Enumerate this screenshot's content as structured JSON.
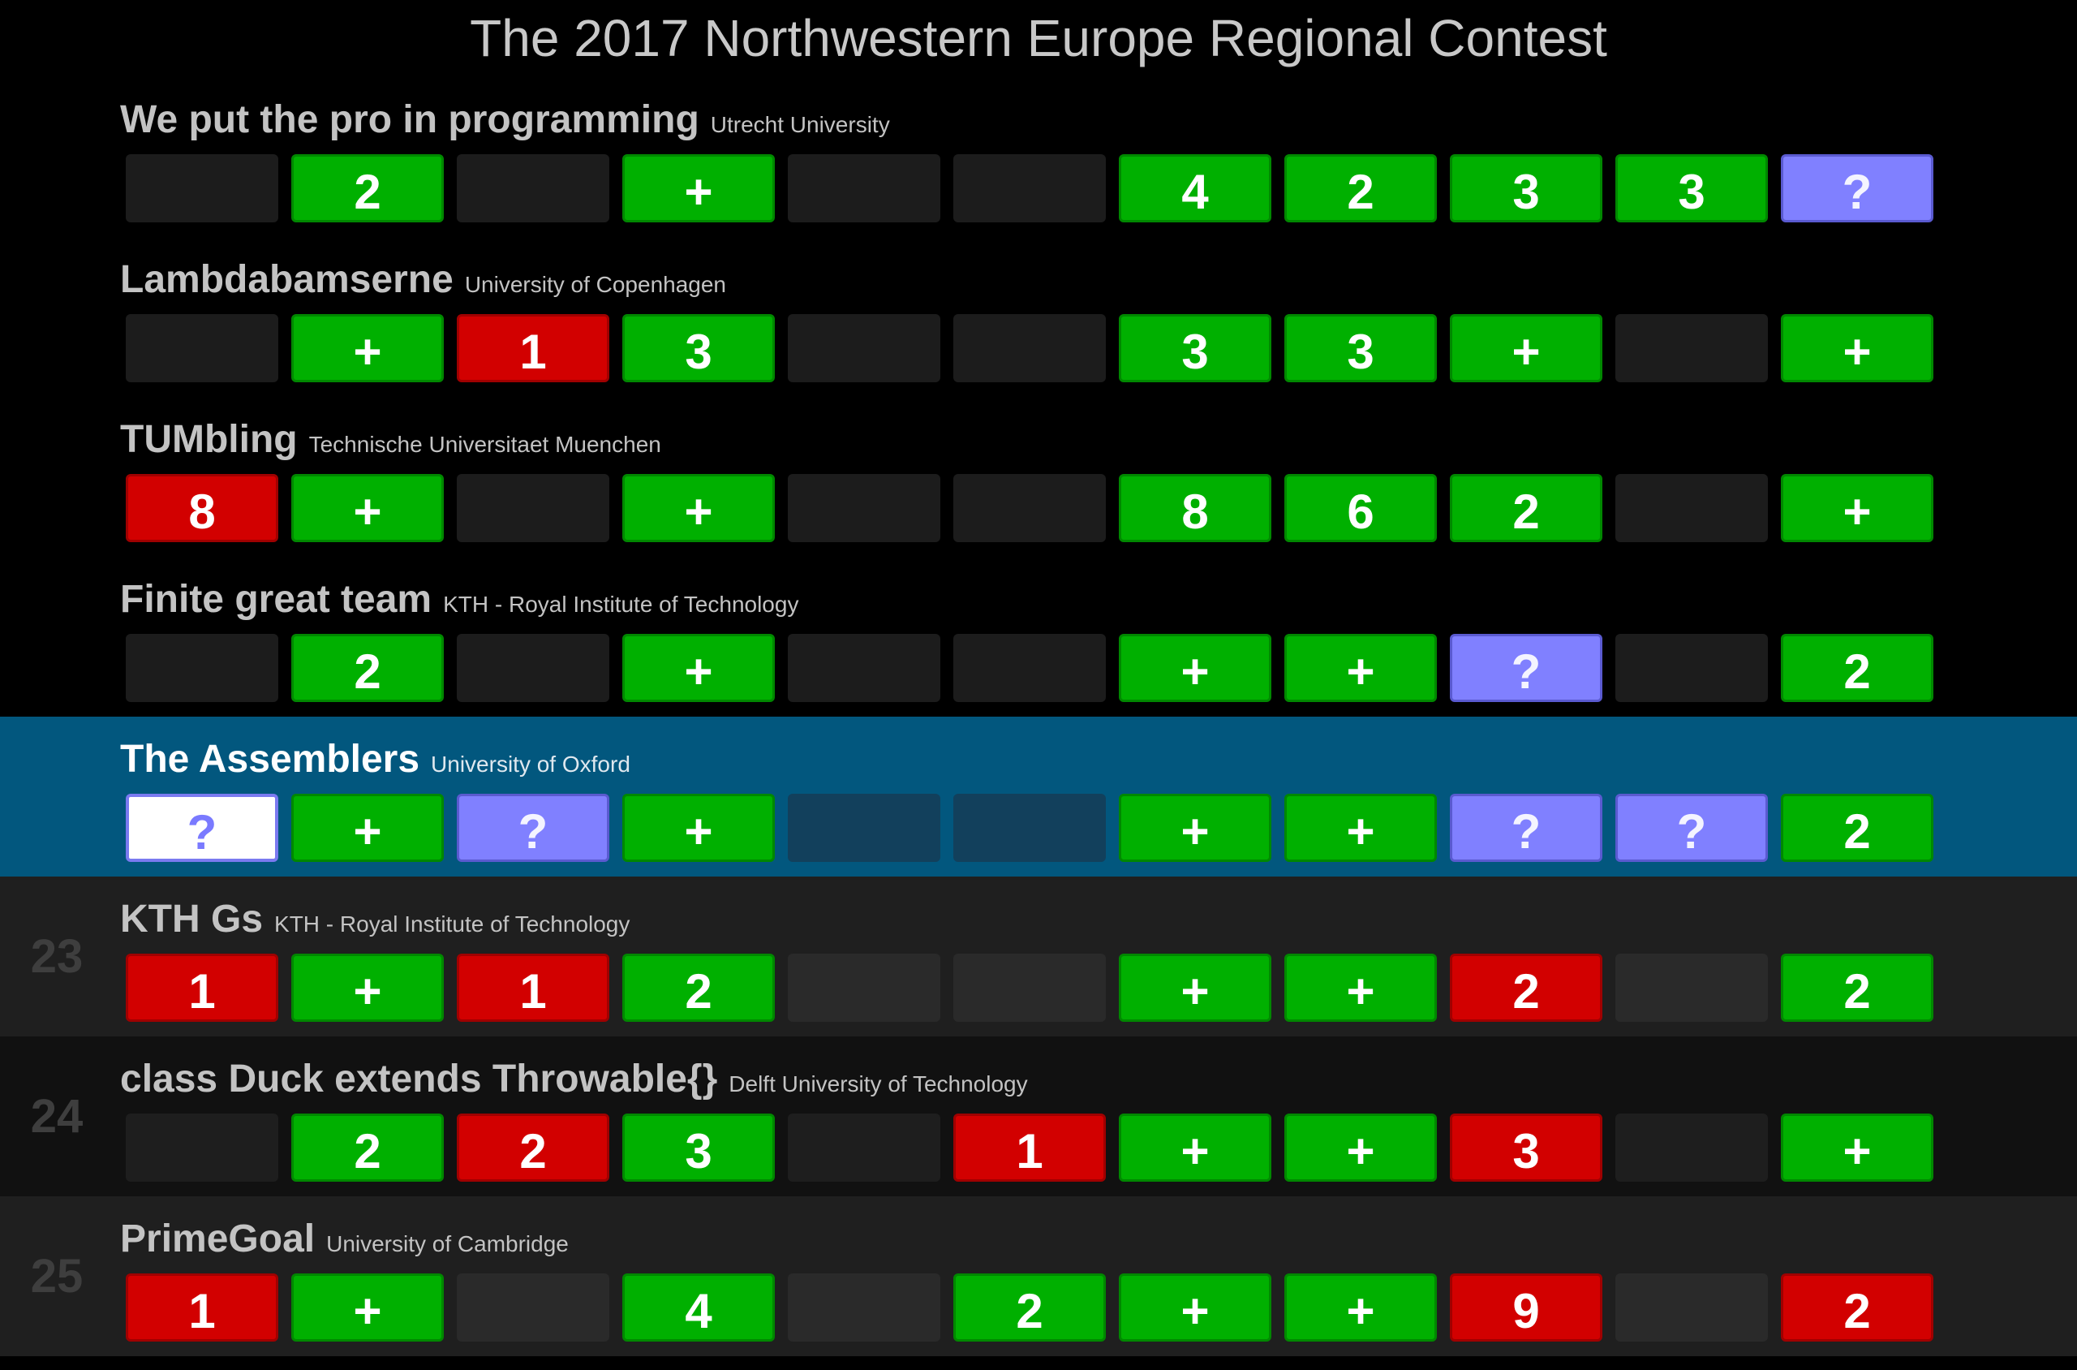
{
  "title": "The 2017 Northwestern Europe Regional Contest",
  "colors": {
    "solved": "#00b000",
    "failed": "#d20000",
    "pending": "#8080ff",
    "highlight_row": "#02577e"
  },
  "rows": [
    {
      "rank": "",
      "team": "We put the pro in programming",
      "affiliation": "Utrecht University",
      "cells": [
        {
          "status": "empty",
          "text": ""
        },
        {
          "status": "solved",
          "text": "2"
        },
        {
          "status": "empty",
          "text": ""
        },
        {
          "status": "solved",
          "text": "+"
        },
        {
          "status": "empty",
          "text": ""
        },
        {
          "status": "empty",
          "text": ""
        },
        {
          "status": "solved",
          "text": "4"
        },
        {
          "status": "solved",
          "text": "2"
        },
        {
          "status": "solved",
          "text": "3"
        },
        {
          "status": "solved",
          "text": "3"
        },
        {
          "status": "pending",
          "text": "?"
        }
      ]
    },
    {
      "rank": "",
      "team": "Lambdabamserne",
      "affiliation": "University of Copenhagen",
      "cells": [
        {
          "status": "empty",
          "text": ""
        },
        {
          "status": "solved",
          "text": "+"
        },
        {
          "status": "failed",
          "text": "1"
        },
        {
          "status": "solved",
          "text": "3"
        },
        {
          "status": "empty",
          "text": ""
        },
        {
          "status": "empty",
          "text": ""
        },
        {
          "status": "solved",
          "text": "3"
        },
        {
          "status": "solved",
          "text": "3"
        },
        {
          "status": "solved",
          "text": "+"
        },
        {
          "status": "empty",
          "text": ""
        },
        {
          "status": "solved",
          "text": "+"
        }
      ]
    },
    {
      "rank": "",
      "team": "TUMbling",
      "affiliation": "Technische Universitaet Muenchen",
      "cells": [
        {
          "status": "failed",
          "text": "8"
        },
        {
          "status": "solved",
          "text": "+"
        },
        {
          "status": "empty",
          "text": ""
        },
        {
          "status": "solved",
          "text": "+"
        },
        {
          "status": "empty",
          "text": ""
        },
        {
          "status": "empty",
          "text": ""
        },
        {
          "status": "solved",
          "text": "8"
        },
        {
          "status": "solved",
          "text": "6"
        },
        {
          "status": "solved",
          "text": "2"
        },
        {
          "status": "empty",
          "text": ""
        },
        {
          "status": "solved",
          "text": "+"
        }
      ]
    },
    {
      "rank": "",
      "team": "Finite great team",
      "affiliation": "KTH - Royal Institute of Technology",
      "cells": [
        {
          "status": "empty",
          "text": ""
        },
        {
          "status": "solved",
          "text": "2"
        },
        {
          "status": "empty",
          "text": ""
        },
        {
          "status": "solved",
          "text": "+"
        },
        {
          "status": "empty",
          "text": ""
        },
        {
          "status": "empty",
          "text": ""
        },
        {
          "status": "solved",
          "text": "+"
        },
        {
          "status": "solved",
          "text": "+"
        },
        {
          "status": "pending",
          "text": "?"
        },
        {
          "status": "empty",
          "text": ""
        },
        {
          "status": "solved",
          "text": "2"
        }
      ]
    },
    {
      "rank": "",
      "team": "The Assemblers",
      "affiliation": "University of Oxford",
      "current": true,
      "cells": [
        {
          "status": "active",
          "text": "?"
        },
        {
          "status": "solved",
          "text": "+"
        },
        {
          "status": "pending",
          "text": "?"
        },
        {
          "status": "solved",
          "text": "+"
        },
        {
          "status": "empty",
          "text": ""
        },
        {
          "status": "empty",
          "text": ""
        },
        {
          "status": "solved",
          "text": "+"
        },
        {
          "status": "solved",
          "text": "+"
        },
        {
          "status": "pending",
          "text": "?"
        },
        {
          "status": "pending",
          "text": "?"
        },
        {
          "status": "solved",
          "text": "2"
        }
      ]
    },
    {
      "rank": "23",
      "team": "KTH Gs",
      "affiliation": "KTH - Royal Institute of Technology",
      "cells": [
        {
          "status": "failed",
          "text": "1"
        },
        {
          "status": "solved",
          "text": "+"
        },
        {
          "status": "failed",
          "text": "1"
        },
        {
          "status": "solved",
          "text": "2"
        },
        {
          "status": "empty",
          "text": ""
        },
        {
          "status": "empty",
          "text": ""
        },
        {
          "status": "solved",
          "text": "+"
        },
        {
          "status": "solved",
          "text": "+"
        },
        {
          "status": "failed",
          "text": "2"
        },
        {
          "status": "empty",
          "text": ""
        },
        {
          "status": "solved",
          "text": "2"
        }
      ]
    },
    {
      "rank": "24",
      "team": "class Duck extends Throwable{}",
      "affiliation": "Delft University of Technology",
      "cells": [
        {
          "status": "empty",
          "text": ""
        },
        {
          "status": "solved",
          "text": "2"
        },
        {
          "status": "failed",
          "text": "2"
        },
        {
          "status": "solved",
          "text": "3"
        },
        {
          "status": "empty",
          "text": ""
        },
        {
          "status": "failed",
          "text": "1"
        },
        {
          "status": "solved",
          "text": "+"
        },
        {
          "status": "solved",
          "text": "+"
        },
        {
          "status": "failed",
          "text": "3"
        },
        {
          "status": "empty",
          "text": ""
        },
        {
          "status": "solved",
          "text": "+"
        }
      ]
    },
    {
      "rank": "25",
      "team": "PrimeGoal",
      "affiliation": "University of Cambridge",
      "cells": [
        {
          "status": "failed",
          "text": "1"
        },
        {
          "status": "solved",
          "text": "+"
        },
        {
          "status": "empty",
          "text": ""
        },
        {
          "status": "solved",
          "text": "4"
        },
        {
          "status": "empty",
          "text": ""
        },
        {
          "status": "solved",
          "text": "2"
        },
        {
          "status": "solved",
          "text": "+"
        },
        {
          "status": "solved",
          "text": "+"
        },
        {
          "status": "failed",
          "text": "9"
        },
        {
          "status": "empty",
          "text": ""
        },
        {
          "status": "failed",
          "text": "2"
        }
      ]
    }
  ]
}
